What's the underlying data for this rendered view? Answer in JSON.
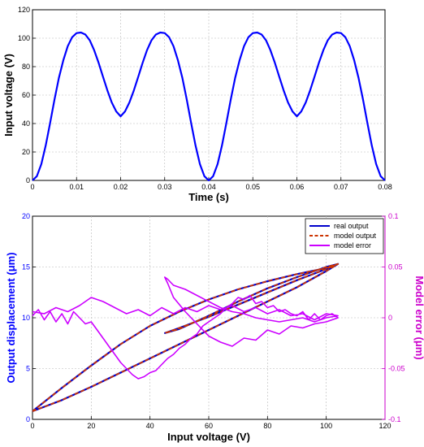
{
  "chart_data": [
    {
      "type": "line",
      "title": "",
      "xlabel": "Time (s)",
      "ylabel": "Input voltage (V)",
      "xlim": [
        0,
        0.08
      ],
      "ylim": [
        0,
        120
      ],
      "x_ticks": [
        "0",
        "0.01",
        "0.02",
        "0.03",
        "0.04",
        "0.05",
        "0.06",
        "0.07",
        "0.08"
      ],
      "y_ticks": [
        "0",
        "20",
        "40",
        "60",
        "80",
        "100",
        "120"
      ],
      "grid": true,
      "series": [
        {
          "color": "#0000ff",
          "x": [
            0,
            0.001,
            0.002,
            0.003,
            0.004,
            0.005,
            0.006,
            0.007,
            0.008,
            0.009,
            0.01,
            0.011,
            0.012,
            0.013,
            0.014,
            0.015,
            0.016,
            0.017,
            0.018,
            0.019,
            0.02,
            0.021,
            0.022,
            0.023,
            0.024,
            0.025,
            0.026,
            0.027,
            0.028,
            0.029,
            0.03,
            0.031,
            0.032,
            0.033,
            0.034,
            0.035,
            0.036,
            0.037,
            0.038,
            0.039,
            0.04,
            0.041,
            0.042,
            0.043,
            0.044,
            0.045,
            0.046,
            0.047,
            0.048,
            0.049,
            0.05,
            0.051,
            0.052,
            0.053,
            0.054,
            0.055,
            0.056,
            0.057,
            0.058,
            0.059,
            0.06,
            0.061,
            0.062,
            0.063,
            0.064,
            0.065,
            0.066,
            0.067,
            0.068,
            0.069,
            0.07,
            0.071,
            0.072,
            0.073,
            0.074,
            0.075,
            0.076,
            0.077,
            0.078,
            0.079,
            0.08
          ],
          "y": [
            0,
            3.0,
            11.5,
            24.6,
            40.4,
            56.9,
            72.1,
            84.6,
            94.4,
            100.7,
            103.6,
            104.0,
            102.6,
            98.5,
            91.6,
            82.7,
            72.9,
            63.3,
            54.8,
            48.5,
            45.1,
            48.5,
            54.8,
            63.3,
            72.9,
            82.7,
            91.6,
            98.5,
            102.6,
            104.0,
            103.6,
            100.7,
            94.4,
            84.6,
            72.1,
            56.9,
            40.4,
            24.6,
            11.5,
            3.0,
            0,
            3.0,
            11.5,
            24.6,
            40.4,
            56.9,
            72.1,
            84.6,
            94.4,
            100.7,
            103.6,
            104.0,
            102.6,
            98.5,
            91.6,
            82.7,
            72.9,
            63.3,
            54.8,
            48.5,
            45.1,
            48.5,
            54.8,
            63.3,
            72.9,
            82.7,
            91.6,
            98.5,
            102.6,
            104.0,
            103.6,
            100.7,
            94.4,
            84.6,
            72.1,
            56.9,
            40.4,
            24.6,
            11.5,
            3.0,
            0
          ]
        }
      ]
    },
    {
      "type": "line",
      "title": "",
      "xlabel": "Input voltage (V)",
      "ylabel": "Output displacement (μm)",
      "y2label": "Model error (μm)",
      "xlim": [
        0,
        120
      ],
      "ylim": [
        0,
        20
      ],
      "y2lim": [
        -0.1,
        0.1
      ],
      "x_ticks": [
        "0",
        "20",
        "40",
        "60",
        "80",
        "100",
        "120"
      ],
      "y_ticks": [
        "0",
        "5",
        "10",
        "15",
        "20"
      ],
      "y2_ticks": [
        "-0.1",
        "-0.05",
        "0",
        "0.05",
        "0.1"
      ],
      "grid": true,
      "legend_position": "top-right",
      "left_axis_color": "#0000ff",
      "right_axis_color": "#cc00cc",
      "series": [
        {
          "name": "real output",
          "color": "#0000cc",
          "style": "solid",
          "axis": "left",
          "x": [
            0,
            10,
            20,
            30,
            40,
            50,
            60,
            70,
            80,
            90,
            100,
            104,
            100,
            90,
            80,
            70,
            60,
            50,
            45.1,
            50,
            60,
            70,
            80,
            90,
            100,
            104,
            100,
            90,
            80,
            70,
            60,
            50,
            40,
            30,
            20,
            10,
            0
          ],
          "y": [
            0.8,
            1.9,
            3.2,
            4.6,
            6.0,
            7.4,
            8.8,
            10.2,
            11.6,
            13.0,
            14.6,
            15.3,
            15.0,
            14.0,
            12.9,
            11.6,
            10.2,
            8.9,
            8.5,
            9.0,
            10.1,
            11.3,
            12.5,
            13.7,
            14.8,
            15.3,
            14.9,
            14.3,
            13.6,
            12.8,
            11.8,
            10.6,
            9.2,
            7.4,
            5.3,
            3.1,
            0.8
          ]
        },
        {
          "name": "model output",
          "color": "#cc3300",
          "style": "dashed",
          "axis": "left",
          "x": [
            0,
            10,
            20,
            30,
            40,
            50,
            60,
            70,
            80,
            90,
            100,
            104,
            100,
            90,
            80,
            70,
            60,
            50,
            45.1,
            50,
            60,
            70,
            80,
            90,
            100,
            104,
            100,
            90,
            80,
            70,
            60,
            50,
            40,
            30,
            20,
            10,
            0
          ],
          "y": [
            0.8,
            1.9,
            3.2,
            4.6,
            6.0,
            7.4,
            8.8,
            10.2,
            11.6,
            13.0,
            14.6,
            15.3,
            15.0,
            14.0,
            12.9,
            11.6,
            10.2,
            8.9,
            8.5,
            9.0,
            10.1,
            11.3,
            12.5,
            13.7,
            14.8,
            15.3,
            14.9,
            14.3,
            13.6,
            12.8,
            11.8,
            10.6,
            9.2,
            7.4,
            5.3,
            3.1,
            0.8
          ]
        },
        {
          "name": "model error",
          "color": "#cc00ff",
          "style": "solid",
          "axis": "right",
          "x": [
            0,
            2,
            4,
            6,
            8,
            10,
            12,
            14,
            16,
            18,
            20,
            22,
            24,
            26,
            28,
            30,
            32,
            34,
            36,
            38,
            40,
            42,
            44,
            46,
            48,
            50,
            52,
            54,
            56,
            58,
            60,
            62,
            64,
            66,
            68,
            70,
            72,
            74,
            76,
            78,
            80,
            82,
            84,
            86,
            88,
            90,
            92,
            94,
            96,
            98,
            100,
            102,
            104,
            100,
            96,
            92,
            88,
            84,
            80,
            76,
            72,
            68,
            64,
            60,
            56,
            52,
            48,
            46,
            45,
            46,
            48,
            52,
            56,
            60,
            64,
            68,
            72,
            76,
            80,
            84,
            88,
            92,
            96,
            100,
            104,
            100,
            96,
            92,
            88,
            84,
            80,
            76,
            72,
            68,
            64,
            60,
            56,
            52,
            48,
            44,
            40,
            36,
            32,
            28,
            24,
            20,
            16,
            12,
            8,
            4,
            0
          ],
          "y": [
            0.002,
            0.008,
            -0.002,
            0.006,
            -0.004,
            0.004,
            -0.006,
            0.006,
            0.0,
            -0.006,
            -0.004,
            -0.012,
            -0.02,
            -0.028,
            -0.036,
            -0.044,
            -0.05,
            -0.056,
            -0.06,
            -0.058,
            -0.054,
            -0.052,
            -0.046,
            -0.04,
            -0.036,
            -0.03,
            -0.026,
            -0.02,
            -0.016,
            -0.008,
            -0.004,
            0.0,
            0.004,
            0.01,
            0.014,
            0.02,
            0.018,
            0.022,
            0.014,
            0.016,
            0.01,
            0.012,
            0.006,
            0.008,
            0.004,
            0.002,
            0.006,
            -0.002,
            0.004,
            -0.002,
            0.002,
            0.004,
            0.0,
            -0.004,
            -0.006,
            -0.01,
            -0.008,
            -0.016,
            -0.012,
            -0.022,
            -0.02,
            -0.028,
            -0.024,
            -0.018,
            -0.006,
            0.006,
            0.02,
            0.034,
            0.04,
            0.038,
            0.032,
            0.028,
            0.022,
            0.016,
            0.01,
            0.006,
            0.004,
            0.0,
            -0.002,
            -0.004,
            -0.002,
            0.0,
            -0.004,
            0.0,
            0.002,
            0.004,
            -0.002,
            0.004,
            0.002,
            0.008,
            0.004,
            0.01,
            0.006,
            0.012,
            0.008,
            0.012,
            0.006,
            0.01,
            0.004,
            0.01,
            0.002,
            0.008,
            0.004,
            0.01,
            0.016,
            0.02,
            0.012,
            0.006,
            0.01,
            0.004,
            0.006
          ]
        }
      ]
    }
  ]
}
